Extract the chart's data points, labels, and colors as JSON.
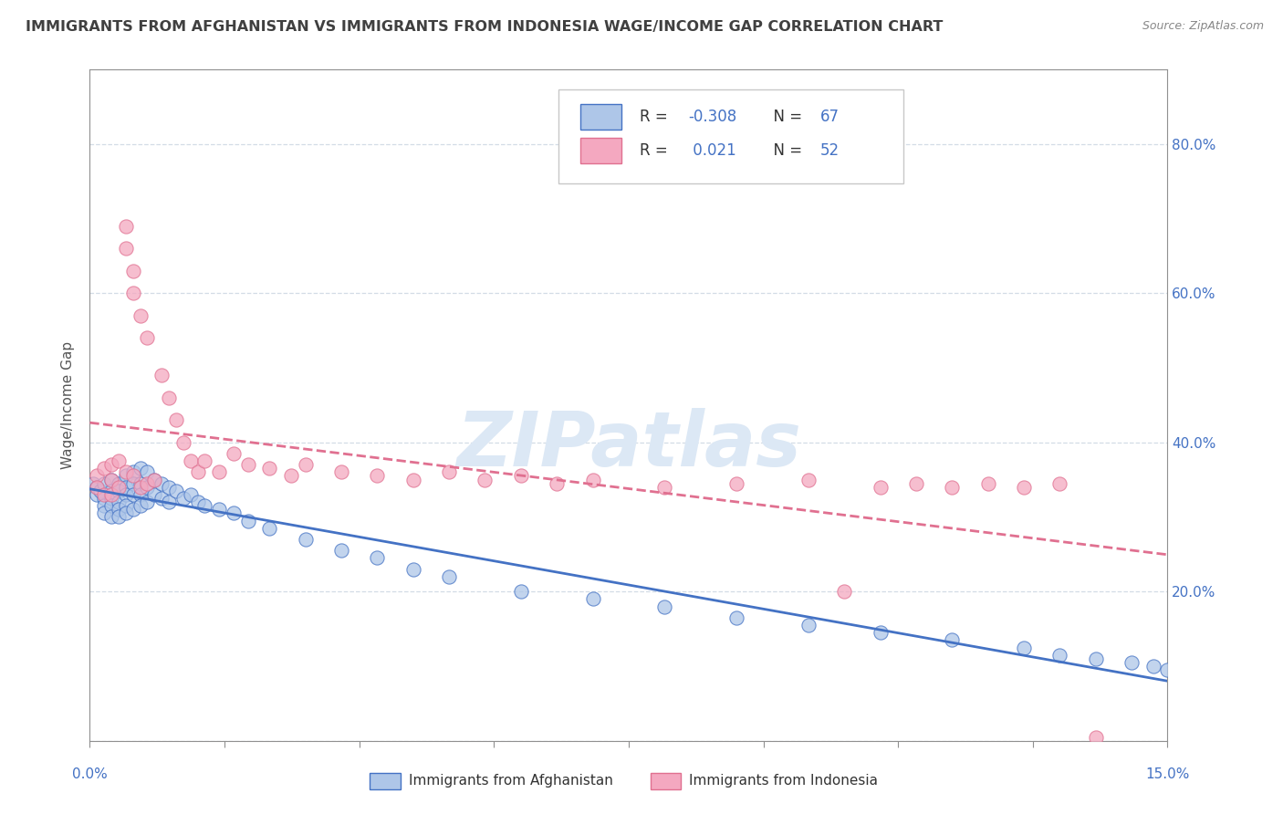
{
  "title": "IMMIGRANTS FROM AFGHANISTAN VS IMMIGRANTS FROM INDONESIA WAGE/INCOME GAP CORRELATION CHART",
  "source": "Source: ZipAtlas.com",
  "ylabel": "Wage/Income Gap",
  "right_yticks": [
    0.2,
    0.4,
    0.6,
    0.8
  ],
  "xlim": [
    0.0,
    0.15
  ],
  "ylim": [
    0.0,
    0.9
  ],
  "afghanistan_R": -0.308,
  "afghanistan_N": 67,
  "indonesia_R": 0.021,
  "indonesia_N": 52,
  "afghanistan_color": "#aec6e8",
  "indonesia_color": "#f4a8c0",
  "afghanistan_line_color": "#4472c4",
  "indonesia_line_color": "#e07090",
  "watermark": "ZIPatlas",
  "watermark_color": "#dce8f5",
  "background_color": "#ffffff",
  "title_color": "#404040",
  "axis_color": "#909090",
  "grid_color": "#c8d4e0",
  "afghanistan_scatter_x": [
    0.0005,
    0.001,
    0.001,
    0.0015,
    0.002,
    0.002,
    0.002,
    0.002,
    0.003,
    0.003,
    0.003,
    0.003,
    0.003,
    0.004,
    0.004,
    0.004,
    0.004,
    0.004,
    0.005,
    0.005,
    0.005,
    0.005,
    0.005,
    0.006,
    0.006,
    0.006,
    0.006,
    0.007,
    0.007,
    0.007,
    0.007,
    0.008,
    0.008,
    0.008,
    0.009,
    0.009,
    0.01,
    0.01,
    0.011,
    0.011,
    0.012,
    0.013,
    0.014,
    0.015,
    0.016,
    0.018,
    0.02,
    0.022,
    0.025,
    0.03,
    0.035,
    0.04,
    0.045,
    0.05,
    0.06,
    0.07,
    0.08,
    0.09,
    0.1,
    0.11,
    0.12,
    0.13,
    0.135,
    0.14,
    0.145,
    0.148,
    0.15
  ],
  "afghanistan_scatter_y": [
    0.345,
    0.34,
    0.33,
    0.335,
    0.345,
    0.325,
    0.315,
    0.305,
    0.35,
    0.335,
    0.325,
    0.315,
    0.3,
    0.345,
    0.335,
    0.32,
    0.31,
    0.3,
    0.355,
    0.34,
    0.33,
    0.315,
    0.305,
    0.36,
    0.345,
    0.33,
    0.31,
    0.365,
    0.345,
    0.33,
    0.315,
    0.36,
    0.34,
    0.32,
    0.35,
    0.33,
    0.345,
    0.325,
    0.34,
    0.32,
    0.335,
    0.325,
    0.33,
    0.32,
    0.315,
    0.31,
    0.305,
    0.295,
    0.285,
    0.27,
    0.255,
    0.245,
    0.23,
    0.22,
    0.2,
    0.19,
    0.18,
    0.165,
    0.155,
    0.145,
    0.135,
    0.125,
    0.115,
    0.11,
    0.105,
    0.1,
    0.095
  ],
  "indonesia_scatter_x": [
    0.001,
    0.001,
    0.002,
    0.002,
    0.003,
    0.003,
    0.003,
    0.004,
    0.004,
    0.005,
    0.005,
    0.005,
    0.006,
    0.006,
    0.006,
    0.007,
    0.007,
    0.008,
    0.008,
    0.009,
    0.01,
    0.011,
    0.012,
    0.013,
    0.014,
    0.015,
    0.016,
    0.018,
    0.02,
    0.022,
    0.025,
    0.028,
    0.03,
    0.035,
    0.04,
    0.045,
    0.05,
    0.055,
    0.06,
    0.065,
    0.07,
    0.08,
    0.09,
    0.1,
    0.105,
    0.11,
    0.115,
    0.12,
    0.125,
    0.13,
    0.135,
    0.14
  ],
  "indonesia_scatter_y": [
    0.355,
    0.34,
    0.365,
    0.33,
    0.37,
    0.35,
    0.33,
    0.375,
    0.34,
    0.69,
    0.66,
    0.36,
    0.63,
    0.6,
    0.355,
    0.57,
    0.34,
    0.54,
    0.345,
    0.35,
    0.49,
    0.46,
    0.43,
    0.4,
    0.375,
    0.36,
    0.375,
    0.36,
    0.385,
    0.37,
    0.365,
    0.355,
    0.37,
    0.36,
    0.355,
    0.35,
    0.36,
    0.35,
    0.355,
    0.345,
    0.35,
    0.34,
    0.345,
    0.35,
    0.2,
    0.34,
    0.345,
    0.34,
    0.345,
    0.34,
    0.345,
    0.005
  ]
}
